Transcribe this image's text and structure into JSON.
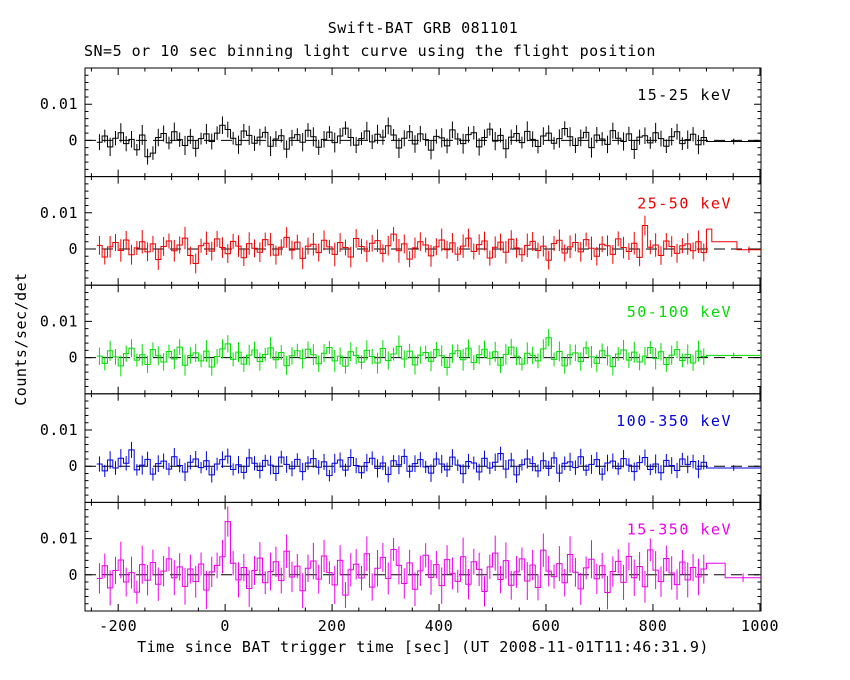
{
  "page": {
    "title": "Swift-BAT GRB 081101",
    "subtitle": "SN=5 or 10 sec binning light curve using the flight position",
    "xlabel": "Time since BAT trigger time [sec] (UT 2008-11-01T11:46:31.9)",
    "ylabel": "Counts/sec/det",
    "background_color": "#ffffff",
    "axis_color": "#000000"
  },
  "chart_data": {
    "type": "line",
    "subtype": "binned-histogram-light-curve-with-error-bars",
    "title": "Swift-BAT GRB 081101",
    "subtitle": "SN=5 or 10 sec binning light curve using the flight position",
    "xlabel": "Time since BAT trigger time [sec] (UT 2008-11-01T11:46:31.9)",
    "ylabel": "Counts/sec/det",
    "grid": false,
    "legend_position": "in-panel upper-right colored labels",
    "x_range": [
      -262,
      1002
    ],
    "x_major_ticks": [
      -200,
      0,
      200,
      400,
      600,
      800,
      1000
    ],
    "x_tick_labels": [
      "-200",
      "0",
      "200",
      "400",
      "600",
      "800",
      "1000"
    ],
    "x_minor_step": 50,
    "value_unit": 0.001,
    "panel_value_range_milli": [
      -10,
      20
    ],
    "y_major_ticks_milli": [
      0,
      10
    ],
    "y_tick_labels": [
      "0",
      "0.01"
    ],
    "y_minor_step_milli": 2,
    "zero_line": {
      "style": "dashed",
      "color": "#000000"
    },
    "bin_start": -240,
    "bin_width": 10,
    "err_jitter": [
      1.0,
      0.8,
      1.15,
      0.9,
      1.2,
      0.95,
      1.05,
      0.75,
      1.25,
      1.0,
      0.85,
      1.1
    ],
    "series": [
      {
        "name": "15-25 keV",
        "color": "#000000",
        "err_milli": 2.2,
        "values_milli": [
          -0.5,
          1.2,
          -1.8,
          0.6,
          2.1,
          -0.9,
          0.3,
          -2.6,
          1.5,
          -4.5,
          -3.5,
          0.8,
          1.9,
          -0.7,
          2.4,
          0.2,
          -1.4,
          1.1,
          -2.2,
          0.5,
          1.8,
          -0.3,
          2.0,
          4.2,
          3.0,
          0.6,
          -1.2,
          2.6,
          1.4,
          -0.8,
          0.9,
          2.2,
          -1.6,
          0.4,
          1.3,
          -2.4,
          0.7,
          1.6,
          -0.5,
          2.8,
          1.0,
          -1.9,
          0.3,
          2.3,
          -0.6,
          1.2,
          3.4,
          0.8,
          -1.3,
          0.5,
          2.6,
          -0.4,
          1.7,
          0.9,
          4.0,
          1.5,
          -2.1,
          0.6,
          2.4,
          -1.0,
          1.8,
          0.2,
          -2.7,
          1.1,
          0.7,
          -1.5,
          2.9,
          0.4,
          -0.9,
          1.6,
          2.1,
          -1.8,
          0.8,
          3.1,
          -0.2,
          1.4,
          -2.3,
          0.9,
          1.9,
          -0.6,
          2.5,
          0.3,
          -1.7,
          1.2,
          2.0,
          -0.8,
          0.5,
          3.3,
          1.0,
          -1.4,
          0.7,
          2.2,
          -2.0,
          1.5,
          0.4,
          -1.1,
          2.7,
          0.6,
          -0.3,
          1.8,
          -2.5,
          0.9,
          1.3,
          -0.7,
          2.1,
          0.5,
          -1.6,
          1.0,
          2.4,
          -0.9,
          0.2,
          1.7,
          -1.2,
          0.8
        ],
        "tail_bins": [
          [
            900,
            1002,
            -0.3
          ]
        ],
        "tail_err_milli": 0.8
      },
      {
        "name": "25-50 keV",
        "color": "#ee0000",
        "err_milli": 2.6,
        "values_milli": [
          1.0,
          -2.2,
          0.6,
          1.8,
          -0.4,
          2.5,
          -1.6,
          0.3,
          2.0,
          -0.8,
          1.4,
          -2.9,
          0.7,
          2.2,
          -0.5,
          1.1,
          3.0,
          -1.8,
          -4.0,
          0.9,
          1.6,
          -0.6,
          2.8,
          0.4,
          -1.3,
          2.1,
          0.8,
          -2.4,
          1.5,
          0.2,
          -0.9,
          2.6,
          1.2,
          -1.7,
          0.5,
          3.2,
          -0.3,
          1.9,
          -2.6,
          0.8,
          1.3,
          -1.0,
          2.4,
          0.6,
          -1.5,
          1.8,
          0.4,
          -2.2,
          2.9,
          0.7,
          -0.6,
          1.6,
          2.3,
          -1.2,
          0.9,
          4.1,
          -0.5,
          1.4,
          -2.8,
          0.3,
          2.0,
          1.1,
          -1.9,
          0.6,
          2.5,
          -0.2,
          1.7,
          -1.4,
          0.8,
          3.0,
          -0.7,
          1.2,
          2.2,
          -2.5,
          0.5,
          1.9,
          -0.9,
          2.7,
          0.3,
          -1.6,
          1.0,
          2.1,
          -0.4,
          0.8,
          -3.1,
          1.5,
          2.4,
          -1.1,
          0.6,
          1.8,
          -0.8,
          2.6,
          0.2,
          -2.0,
          1.3,
          0.9,
          -1.5,
          2.8,
          0.4,
          -0.7,
          1.6,
          -2.3,
          6.5,
          0.5,
          1.1,
          -1.8,
          2.2,
          0.7,
          -1.2,
          0.9,
          1.4,
          -0.5,
          2.0,
          -1.0
        ],
        "tail_bins": [
          [
            900,
            910,
            5.5
          ],
          [
            910,
            957,
            2.0
          ],
          [
            957,
            1002,
            -0.2
          ]
        ],
        "tail_err_milli": 0.9
      },
      {
        "name": "50-100 keV",
        "color": "#00dd00",
        "err_milli": 2.4,
        "values_milli": [
          0.4,
          -1.6,
          1.9,
          0.2,
          -2.3,
          1.1,
          2.6,
          -0.7,
          0.8,
          -1.9,
          2.2,
          0.5,
          -1.2,
          1.7,
          -0.4,
          2.9,
          -2.1,
          0.6,
          1.3,
          -0.9,
          1.8,
          -2.6,
          0.3,
          2.4,
          3.8,
          -0.5,
          1.5,
          -1.8,
          0.7,
          2.1,
          -1.1,
          0.9,
          2.7,
          -0.6,
          1.4,
          -2.2,
          0.5,
          1.9,
          -0.3,
          2.3,
          0.8,
          -1.7,
          1.2,
          2.8,
          -0.9,
          0.4,
          -2.4,
          1.6,
          0.6,
          -1.3,
          2.0,
          0.3,
          -1.5,
          2.5,
          -0.8,
          1.0,
          3.1,
          -0.4,
          1.8,
          -2.0,
          0.7,
          1.4,
          -1.0,
          2.2,
          0.5,
          -2.7,
          1.1,
          1.9,
          -0.6,
          2.6,
          -1.4,
          0.8,
          2.3,
          -0.2,
          1.6,
          -2.1,
          0.9,
          2.9,
          0.4,
          -1.8,
          1.2,
          0.6,
          -0.9,
          2.4,
          5.5,
          -0.5,
          1.7,
          -2.3,
          0.8,
          1.3,
          -1.1,
          2.7,
          0.2,
          -1.6,
          1.9,
          0.5,
          -2.5,
          1.0,
          2.1,
          -0.7,
          1.5,
          -1.2,
          0.4,
          2.8,
          -0.3,
          1.6,
          -1.9,
          0.7,
          2.2,
          -0.8,
          0.9,
          -1.5,
          1.8,
          0.3
        ],
        "tail_bins": [
          [
            900,
            1002,
            0.6
          ]
        ],
        "tail_err_milli": 0.8
      },
      {
        "name": "100-350 keV",
        "color": "#0000dd",
        "err_milli": 2.1,
        "values_milli": [
          0.6,
          -1.3,
          1.7,
          -0.5,
          2.2,
          0.8,
          4.5,
          -1.0,
          0.3,
          1.9,
          -2.2,
          0.7,
          1.4,
          -0.8,
          2.6,
          0.2,
          -1.6,
          1.1,
          2.0,
          -0.4,
          1.5,
          -2.4,
          0.6,
          1.8,
          2.8,
          -0.9,
          0.4,
          -1.7,
          2.3,
          0.8,
          -1.2,
          1.6,
          0.3,
          -2.0,
          2.5,
          0.5,
          -0.7,
          1.9,
          -1.5,
          0.9,
          2.1,
          -0.3,
          1.2,
          -2.6,
          0.8,
          1.7,
          -1.1,
          2.4,
          0.2,
          -1.8,
          1.0,
          2.2,
          -0.6,
          0.9,
          -2.3,
          1.5,
          0.4,
          2.7,
          -1.4,
          0.7,
          1.8,
          -0.2,
          -1.9,
          2.0,
          0.6,
          -1.0,
          2.5,
          0.3,
          -2.1,
          1.3,
          0.9,
          -1.6,
          2.2,
          -0.5,
          1.1,
          3.5,
          -0.8,
          1.7,
          -2.4,
          0.4,
          2.0,
          0.7,
          -1.3,
          1.5,
          -0.6,
          2.3,
          -1.9,
          0.8,
          1.2,
          -0.4,
          2.6,
          -1.1,
          0.5,
          1.8,
          -2.2,
          0.9,
          1.4,
          -0.7,
          2.1,
          0.3,
          -1.5,
          1.0,
          2.4,
          -0.9,
          0.6,
          -1.8,
          1.6,
          0.2,
          -1.2,
          2.0,
          0.5,
          1.3,
          -0.8,
          1.1
        ],
        "tail_bins": [
          [
            900,
            1002,
            -0.5
          ]
        ],
        "tail_err_milli": 0.8
      },
      {
        "name": "15-350 keV",
        "color": "#ee00ee",
        "err_milli": 4.2,
        "values_milli": [
          -1.0,
          2.5,
          -3.6,
          1.2,
          4.1,
          -2.0,
          0.6,
          -4.8,
          2.8,
          -1.5,
          3.4,
          -2.6,
          1.0,
          4.4,
          -0.8,
          2.2,
          -3.2,
          1.6,
          -1.9,
          3.0,
          -4.2,
          0.8,
          2.6,
          5.0,
          14.7,
          3.2,
          -1.4,
          2.0,
          -3.8,
          1.2,
          4.6,
          -2.2,
          0.9,
          3.6,
          -1.6,
          6.5,
          -0.6,
          2.4,
          -4.4,
          1.8,
          3.8,
          -1.2,
          5.2,
          0.6,
          -2.8,
          4.0,
          -5.6,
          1.4,
          2.9,
          -0.9,
          5.8,
          -3.4,
          1.8,
          4.8,
          -1.0,
          7.0,
          2.6,
          -2.4,
          3.3,
          -4.0,
          1.1,
          5.4,
          -0.7,
          2.8,
          -3.0,
          4.2,
          0.4,
          -1.8,
          5.0,
          -2.6,
          3.6,
          1.5,
          -4.6,
          2.2,
          6.0,
          -1.3,
          3.9,
          -2.9,
          0.8,
          4.4,
          -1.7,
          2.7,
          -3.5,
          6.8,
          1.0,
          -0.5,
          3.1,
          -2.2,
          5.6,
          0.7,
          -3.9,
          1.9,
          4.3,
          -1.1,
          2.5,
          -4.9,
          0.9,
          3.7,
          -2.1,
          5.1,
          -0.8,
          2.3,
          -3.3,
          6.9,
          1.3,
          -1.9,
          4.5,
          0.5,
          -2.7,
          3.5,
          -1.4,
          2.0,
          -0.6,
          1.6
        ],
        "tail_bins": [
          [
            900,
            935,
            3.2
          ],
          [
            935,
            1002,
            -0.8
          ]
        ],
        "tail_err_milli": 1.2
      }
    ]
  }
}
